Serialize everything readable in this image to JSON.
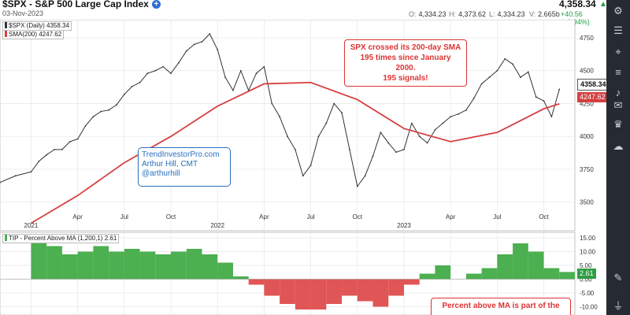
{
  "header": {
    "title": "$SPX - S&P 500 Large Cap Index",
    "date": "03-Nov-2023",
    "price": "4,358.34",
    "open_label": "O:",
    "open": "4,334.23",
    "high_label": "H:",
    "high": "4,373.62",
    "low_label": "L:",
    "low": "4,334.23",
    "volume_label": "V:",
    "volume": "2.665b",
    "change": "+40.56 (+0.94%)",
    "up_color": "#1e9e4a"
  },
  "sidebar_icons": [
    "settings-sliders-icon",
    "menu-icon",
    "pin-icon",
    "list-icon",
    "bell-icon",
    "chat-icon",
    "trophy-icon",
    "cloud-icon",
    "color-palette-icon",
    "plug-icon"
  ],
  "legend": {
    "main": "$SPX (Daily) 4358.34",
    "sma": "SMA(200) 4247.62",
    "tip": "TIP - Percent Above MA (1,200,1) 2.61"
  },
  "annotations": {
    "note_top": [
      "SPX crossed its 200-day SMA",
      "195 times since January 2000.",
      "195 signals!"
    ],
    "credit": [
      "TrendInvestorPro.com",
      "Arthur Hill, CMT",
      "@arthurhill"
    ],
    "note_bottom": [
      "Percent above MA is part of the"
    ]
  },
  "price_tags": {
    "last": "4358.34",
    "sma": "4247.62",
    "tip": "2.61"
  },
  "chart_data": [
    {
      "type": "line",
      "title": "$SPX - S&P 500 Large Cap Index",
      "x_ticks": [
        "2021",
        "Apr",
        "Jul",
        "Oct",
        "2022",
        "Apr",
        "Jul",
        "Oct",
        "2023",
        "Apr",
        "Jul",
        "Oct"
      ],
      "x_tick_months": [
        0,
        3,
        6,
        9,
        12,
        15,
        18,
        21,
        24,
        27,
        30,
        33
      ],
      "y_ticks": [
        3500,
        3750,
        4000,
        4250,
        4500,
        4750
      ],
      "ylim": [
        3420,
        4840
      ],
      "grid": true,
      "series": [
        {
          "name": "$SPX (Daily)",
          "color": "#333333",
          "x": [
            -2,
            -1,
            0,
            0.5,
            1,
            1.5,
            2,
            2.5,
            3,
            3.5,
            4,
            4.5,
            5,
            5.5,
            6,
            6.5,
            7,
            7.5,
            8,
            8.5,
            9,
            9.5,
            10,
            10.5,
            11,
            11.5,
            12,
            12.5,
            13,
            13.5,
            14,
            14.5,
            15,
            15.5,
            16,
            16.5,
            17,
            17.5,
            18,
            18.5,
            19,
            19.5,
            20,
            20.5,
            21,
            21.5,
            22,
            22.5,
            23,
            23.5,
            24,
            24.5,
            25,
            25.5,
            26,
            26.5,
            27,
            27.5,
            28,
            28.5,
            29,
            29.5,
            30,
            30.5,
            31,
            31.5,
            32,
            32.5,
            33,
            33.5,
            34
          ],
          "values": [
            3650,
            3700,
            3730,
            3810,
            3860,
            3900,
            3900,
            3960,
            3980,
            4080,
            4150,
            4190,
            4200,
            4240,
            4320,
            4380,
            4410,
            4480,
            4500,
            4530,
            4480,
            4560,
            4650,
            4700,
            4720,
            4780,
            4660,
            4450,
            4350,
            4500,
            4350,
            4480,
            4530,
            4250,
            4150,
            4000,
            3900,
            3700,
            3780,
            4000,
            4100,
            4250,
            4180,
            3900,
            3620,
            3700,
            3850,
            4030,
            3950,
            3880,
            3900,
            4100,
            4000,
            3950,
            4050,
            4100,
            4150,
            4170,
            4200,
            4290,
            4400,
            4450,
            4500,
            4590,
            4550,
            4450,
            4490,
            4300,
            4270,
            4150,
            4358
          ]
        },
        {
          "name": "SMA(200)",
          "color": "#d64040",
          "x": [
            0,
            3,
            6,
            9,
            12,
            15,
            18,
            21,
            24,
            27,
            30,
            33,
            34
          ],
          "values": [
            3340,
            3550,
            3800,
            4000,
            4230,
            4400,
            4410,
            4280,
            4060,
            3960,
            4030,
            4210,
            4247.62
          ]
        }
      ]
    },
    {
      "type": "area",
      "title": "TIP - Percent Above MA (1,200,1)",
      "y_ticks": [
        15,
        10,
        5,
        0,
        -5,
        -10
      ],
      "ylim": [
        -13,
        17
      ],
      "grid": true,
      "series": [
        {
          "name": "Percent Above MA",
          "positive_color": "#4caf50",
          "negative_color": "#e05555",
          "x": [
            0,
            1,
            2,
            3,
            4,
            5,
            6,
            7,
            8,
            9,
            10,
            11,
            12,
            13,
            14,
            15,
            16,
            17,
            18,
            19,
            20,
            21,
            22,
            23,
            24,
            25,
            26,
            27,
            28,
            29,
            30,
            31,
            32,
            33,
            34
          ],
          "values": [
            14,
            12,
            9,
            10,
            12,
            10,
            11,
            10,
            9,
            10,
            11,
            9,
            6,
            1,
            -2,
            -6,
            -9,
            -11,
            -11,
            -9,
            -6,
            -8,
            -10,
            -6,
            -2,
            2,
            5,
            0,
            2,
            4,
            9,
            13,
            10,
            4,
            2.61
          ]
        }
      ]
    }
  ]
}
